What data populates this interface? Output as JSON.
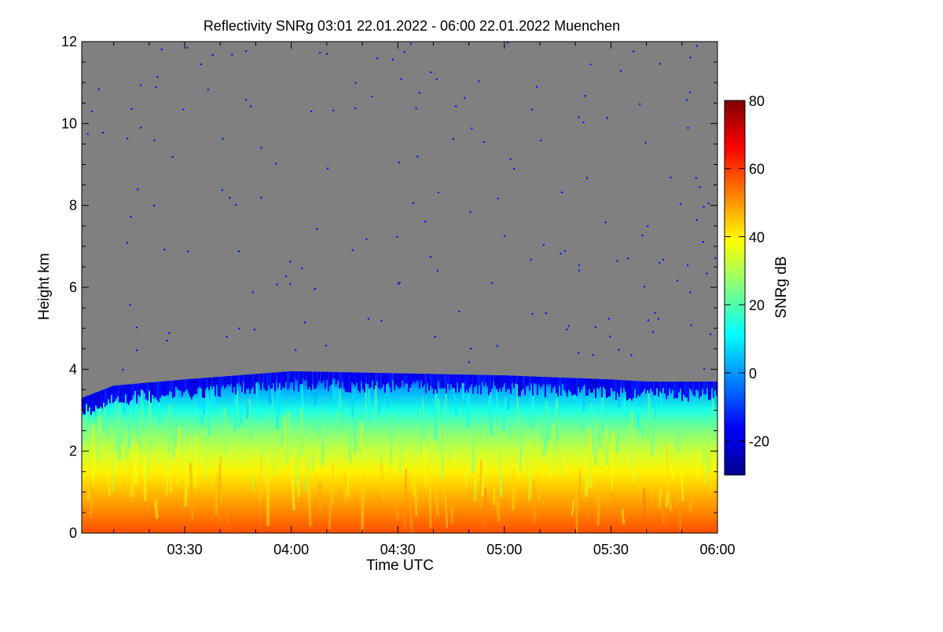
{
  "chart_data": {
    "type": "heatmap",
    "title": "Reflectivity SNRg   03:01 22.01.2022 - 06:00 22.01.2022 Muenchen",
    "xlabel": "Time UTC",
    "ylabel": "Height km",
    "colorbar_label": "SNRg dB",
    "background_color": "#808080",
    "xlim": [
      "03:01",
      "06:00"
    ],
    "x_ticks": [
      "03:30",
      "04:00",
      "04:30",
      "05:00",
      "05:30",
      "06:00"
    ],
    "ylim": [
      0,
      12
    ],
    "y_ticks": [
      "0",
      "2",
      "4",
      "6",
      "8",
      "10",
      "12"
    ],
    "colorbar_range": [
      -30,
      80
    ],
    "colorbar_ticks": [
      "-20",
      "0",
      "20",
      "40",
      "60",
      "80"
    ],
    "colormap": [
      "#00008f",
      "#0000ff",
      "#0080ff",
      "#00ffff",
      "#80ff80",
      "#ffff00",
      "#ff8000",
      "#ff0000",
      "#800000"
    ],
    "grid": false,
    "echo_top_km": {
      "times": [
        "03:01",
        "03:10",
        "03:30",
        "04:00",
        "04:30",
        "05:00",
        "05:30",
        "05:40",
        "06:00"
      ],
      "heights": [
        3.3,
        3.6,
        3.75,
        3.95,
        3.9,
        3.85,
        3.75,
        3.7,
        3.7
      ]
    },
    "snr_profile_db": {
      "heights_km": [
        0,
        0.5,
        1.0,
        1.5,
        2.0,
        2.5,
        3.0,
        3.5,
        3.9
      ],
      "values": [
        58,
        52,
        46,
        40,
        33,
        25,
        14,
        2,
        -12
      ]
    }
  }
}
